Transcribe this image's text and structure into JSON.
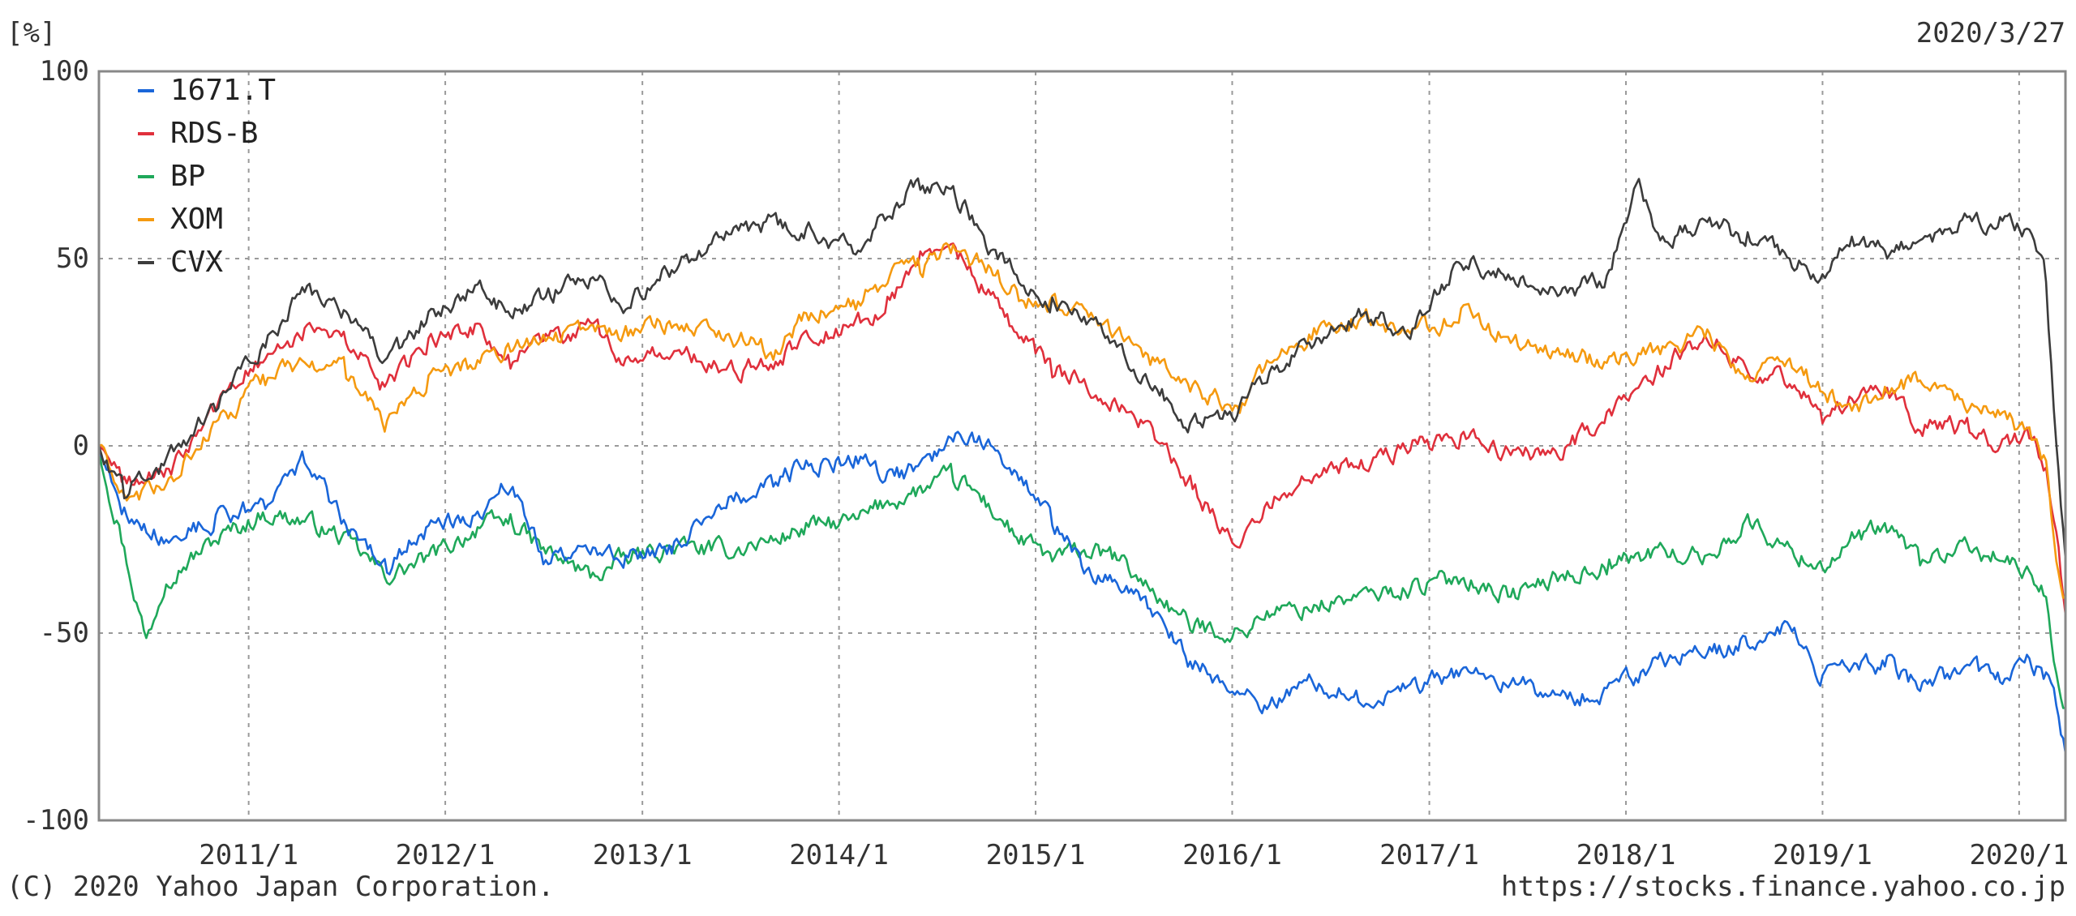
{
  "header": {
    "unit": "[%]",
    "date": "2020/3/27"
  },
  "footer": {
    "copyright": "(C) 2020 Yahoo Japan Corporation.",
    "url": "https://stocks.finance.yahoo.co.jp"
  },
  "chart_data": {
    "type": "line",
    "title": "",
    "xlabel": "",
    "ylabel": "[%]",
    "ylim": [
      -100,
      100
    ],
    "xlim": [
      "2010-03-29",
      "2020-03-27"
    ],
    "yticks": [
      "100",
      "50",
      "0",
      "-50",
      "-100"
    ],
    "xticks": [
      "2011/1",
      "2012/1",
      "2013/1",
      "2014/1",
      "2015/1",
      "2016/1",
      "2017/1",
      "2018/1",
      "2019/1",
      "2020/1"
    ],
    "grid": true,
    "legend": "top-left",
    "colors": {
      "1671.T": "#1a66d9",
      "RDS-B": "#e0303c",
      "BP": "#1fa85a",
      "XOM": "#f59a10",
      "CVX": "#3c3c3c"
    },
    "series": [
      {
        "name": "1671.T",
        "x": [
          "2010-03-29",
          "2010-05-15",
          "2010-08-01",
          "2010-11-01",
          "2011-02-01",
          "2011-04-15",
          "2011-07-01",
          "2011-09-15",
          "2011-12-01",
          "2012-03-01",
          "2012-05-01",
          "2012-07-01",
          "2012-10-01",
          "2012-12-01",
          "2013-03-01",
          "2013-06-01",
          "2013-09-01",
          "2013-11-01",
          "2014-02-01",
          "2014-04-01",
          "2014-06-01",
          "2014-08-01",
          "2014-10-01",
          "2014-12-01",
          "2015-02-01",
          "2015-04-01",
          "2015-06-01",
          "2015-08-15",
          "2015-10-15",
          "2016-01-15",
          "2016-03-01",
          "2016-06-01",
          "2016-09-01",
          "2016-12-01",
          "2017-03-01",
          "2017-06-01",
          "2017-09-01",
          "2017-12-01",
          "2018-03-01",
          "2018-06-01",
          "2018-08-15",
          "2018-11-01",
          "2019-01-01",
          "2019-03-01",
          "2019-05-01",
          "2019-07-01",
          "2019-10-01",
          "2019-12-01",
          "2020-01-20",
          "2020-02-20",
          "2020-03-10",
          "2020-03-27"
        ],
        "values": [
          0,
          -18,
          -25,
          -20,
          -15,
          -3,
          -22,
          -32,
          -22,
          -18,
          -10,
          -30,
          -28,
          -30,
          -27,
          -15,
          -10,
          -5,
          -4,
          -8,
          -6,
          3,
          2,
          -8,
          -20,
          -32,
          -38,
          -45,
          -58,
          -65,
          -70,
          -62,
          -68,
          -64,
          -60,
          -63,
          -68,
          -65,
          -58,
          -55,
          -52,
          -48,
          -62,
          -60,
          -58,
          -64,
          -60,
          -62,
          -57,
          -62,
          -70,
          -82
        ]
      },
      {
        "name": "RDS-B",
        "x": [
          "2010-03-29",
          "2010-05-15",
          "2010-08-01",
          "2010-11-01",
          "2011-02-01",
          "2011-04-15",
          "2011-07-01",
          "2011-09-15",
          "2011-12-01",
          "2012-03-01",
          "2012-05-01",
          "2012-07-01",
          "2012-10-01",
          "2012-12-01",
          "2013-03-01",
          "2013-06-01",
          "2013-09-01",
          "2013-11-01",
          "2014-02-01",
          "2014-04-01",
          "2014-06-01",
          "2014-08-01",
          "2014-10-01",
          "2014-12-01",
          "2015-02-01",
          "2015-04-01",
          "2015-06-01",
          "2015-08-15",
          "2015-10-15",
          "2016-01-15",
          "2016-03-01",
          "2016-06-01",
          "2016-09-01",
          "2016-12-01",
          "2017-03-01",
          "2017-06-01",
          "2017-09-01",
          "2017-12-01",
          "2018-03-01",
          "2018-06-01",
          "2018-08-15",
          "2018-11-01",
          "2019-01-01",
          "2019-03-01",
          "2019-05-01",
          "2019-07-01",
          "2019-10-01",
          "2019-12-01",
          "2020-01-20",
          "2020-02-20",
          "2020-03-10",
          "2020-03-27"
        ],
        "values": [
          0,
          -10,
          -8,
          10,
          25,
          30,
          28,
          15,
          28,
          32,
          22,
          28,
          32,
          22,
          25,
          20,
          22,
          30,
          32,
          38,
          50,
          52,
          42,
          30,
          20,
          18,
          12,
          2,
          -10,
          -28,
          -15,
          -8,
          -5,
          0,
          2,
          -2,
          -2,
          8,
          20,
          30,
          20,
          18,
          8,
          12,
          15,
          5,
          5,
          0,
          3,
          -5,
          -25,
          -45
        ]
      },
      {
        "name": "BP",
        "x": [
          "2010-03-29",
          "2010-05-01",
          "2010-06-25",
          "2010-08-01",
          "2010-11-01",
          "2011-02-01",
          "2011-04-15",
          "2011-07-01",
          "2011-09-15",
          "2011-12-01",
          "2012-03-01",
          "2012-05-01",
          "2012-07-01",
          "2012-10-01",
          "2012-12-01",
          "2013-03-01",
          "2013-06-01",
          "2013-09-01",
          "2013-11-01",
          "2014-02-01",
          "2014-04-01",
          "2014-06-01",
          "2014-08-01",
          "2014-10-01",
          "2014-12-01",
          "2015-02-01",
          "2015-04-01",
          "2015-06-01",
          "2015-08-15",
          "2015-10-15",
          "2016-01-15",
          "2016-03-01",
          "2016-06-01",
          "2016-09-01",
          "2016-12-01",
          "2017-03-01",
          "2017-06-01",
          "2017-09-01",
          "2017-12-01",
          "2018-03-01",
          "2018-06-01",
          "2018-08-15",
          "2018-11-01",
          "2019-01-01",
          "2019-03-01",
          "2019-05-01",
          "2019-07-01",
          "2019-10-01",
          "2019-12-01",
          "2020-01-20",
          "2020-02-20",
          "2020-03-10",
          "2020-03-27"
        ],
        "values": [
          0,
          -20,
          -52,
          -35,
          -25,
          -18,
          -20,
          -25,
          -35,
          -30,
          -22,
          -20,
          -28,
          -35,
          -30,
          -27,
          -28,
          -25,
          -22,
          -20,
          -15,
          -12,
          -8,
          -15,
          -25,
          -30,
          -28,
          -30,
          -40,
          -48,
          -50,
          -45,
          -43,
          -40,
          -38,
          -35,
          -40,
          -35,
          -32,
          -28,
          -30,
          -20,
          -28,
          -32,
          -25,
          -22,
          -30,
          -28,
          -30,
          -35,
          -40,
          -60,
          -70
        ]
      },
      {
        "name": "XOM",
        "x": [
          "2010-03-29",
          "2010-05-15",
          "2010-08-01",
          "2010-11-01",
          "2011-02-01",
          "2011-04-15",
          "2011-07-01",
          "2011-09-15",
          "2011-12-01",
          "2012-03-01",
          "2012-05-01",
          "2012-07-01",
          "2012-10-01",
          "2012-12-01",
          "2013-03-01",
          "2013-06-01",
          "2013-09-01",
          "2013-11-01",
          "2014-02-01",
          "2014-04-01",
          "2014-06-01",
          "2014-08-01",
          "2014-10-01",
          "2014-12-01",
          "2015-02-01",
          "2015-04-01",
          "2015-06-01",
          "2015-08-15",
          "2015-10-15",
          "2016-01-15",
          "2016-03-01",
          "2016-06-01",
          "2016-09-01",
          "2016-12-01",
          "2017-03-01",
          "2017-06-01",
          "2017-09-01",
          "2017-12-01",
          "2018-03-01",
          "2018-06-01",
          "2018-08-15",
          "2018-11-01",
          "2019-01-01",
          "2019-03-01",
          "2019-05-01",
          "2019-07-01",
          "2019-10-01",
          "2019-12-01",
          "2020-01-20",
          "2020-02-20",
          "2020-03-10",
          "2020-03-27"
        ],
        "values": [
          0,
          -15,
          -10,
          5,
          18,
          22,
          20,
          5,
          18,
          22,
          26,
          28,
          32,
          30,
          33,
          30,
          25,
          35,
          38,
          45,
          48,
          52,
          48,
          40,
          38,
          35,
          30,
          22,
          15,
          10,
          20,
          30,
          35,
          30,
          35,
          28,
          25,
          22,
          25,
          30,
          18,
          22,
          15,
          10,
          15,
          18,
          10,
          8,
          3,
          -5,
          -30,
          -40
        ]
      },
      {
        "name": "CVX",
        "x": [
          "2010-03-29",
          "2010-05-15",
          "2010-08-01",
          "2010-11-01",
          "2011-02-01",
          "2011-04-15",
          "2011-07-01",
          "2011-09-15",
          "2011-12-01",
          "2012-03-01",
          "2012-05-01",
          "2012-07-01",
          "2012-10-01",
          "2012-12-01",
          "2013-03-01",
          "2013-06-01",
          "2013-09-01",
          "2013-11-01",
          "2014-02-01",
          "2014-04-01",
          "2014-06-01",
          "2014-08-01",
          "2014-10-01",
          "2014-12-01",
          "2015-02-01",
          "2015-04-01",
          "2015-06-01",
          "2015-08-15",
          "2015-10-15",
          "2016-01-15",
          "2016-03-01",
          "2016-06-01",
          "2016-09-01",
          "2016-12-01",
          "2017-03-01",
          "2017-06-01",
          "2017-09-01",
          "2017-12-01",
          "2018-01-25",
          "2018-03-01",
          "2018-06-01",
          "2018-08-15",
          "2018-11-01",
          "2019-01-01",
          "2019-03-01",
          "2019-05-01",
          "2019-07-01",
          "2019-10-01",
          "2019-12-01",
          "2020-01-20",
          "2020-02-20",
          "2020-03-10",
          "2020-03-27"
        ],
        "values": [
          0,
          -12,
          -5,
          10,
          28,
          42,
          35,
          22,
          35,
          42,
          35,
          40,
          45,
          38,
          48,
          55,
          60,
          58,
          52,
          62,
          70,
          68,
          55,
          45,
          38,
          35,
          28,
          15,
          5,
          10,
          18,
          28,
          35,
          30,
          50,
          45,
          40,
          45,
          72,
          55,
          60,
          55,
          50,
          45,
          55,
          52,
          55,
          60,
          60,
          57,
          45,
          0,
          -30
        ]
      }
    ]
  }
}
